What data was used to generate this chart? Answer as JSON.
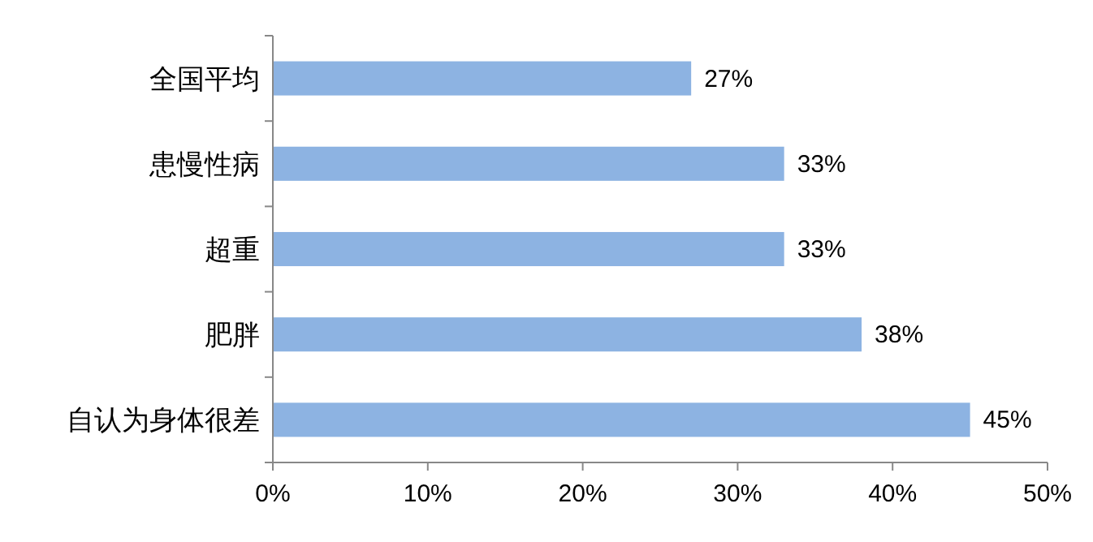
{
  "chart_data": {
    "type": "bar",
    "orientation": "horizontal",
    "categories": [
      "全国平均",
      "患慢性病",
      "超重",
      "肥胖",
      "自认为身体很差"
    ],
    "values": [
      27,
      33,
      33,
      38,
      45
    ],
    "value_labels": [
      "27%",
      "33%",
      "33%",
      "38%",
      "45%"
    ],
    "color": "#8db3e2",
    "xlim": [
      0,
      50
    ],
    "xticks": [
      {
        "value": 0,
        "label": "0%"
      },
      {
        "value": 10,
        "label": "10%"
      },
      {
        "value": 20,
        "label": "20%"
      },
      {
        "value": 30,
        "label": "30%"
      },
      {
        "value": 40,
        "label": "40%"
      },
      {
        "value": 50,
        "label": "50%"
      }
    ],
    "grid": false
  }
}
